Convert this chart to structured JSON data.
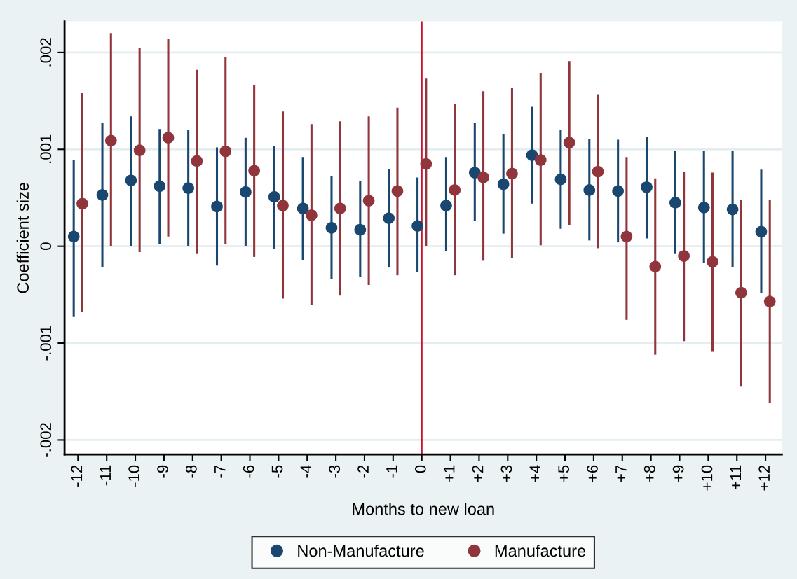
{
  "chart_data": {
    "type": "scatter",
    "xlabel": "Months to new loan",
    "ylabel": "Coefficient size",
    "xlim": [
      -12.47,
      12.57
    ],
    "xticks": [
      {
        "value": -12,
        "label": "-12"
      },
      {
        "value": -11,
        "label": "-11"
      },
      {
        "value": -10,
        "label": "-10"
      },
      {
        "value": -9,
        "label": "-9"
      },
      {
        "value": -8,
        "label": "-8"
      },
      {
        "value": -7,
        "label": "-7"
      },
      {
        "value": -6,
        "label": "-6"
      },
      {
        "value": -5,
        "label": "-5"
      },
      {
        "value": -4,
        "label": "-4"
      },
      {
        "value": -3,
        "label": "-3"
      },
      {
        "value": -2,
        "label": "-2"
      },
      {
        "value": -1,
        "label": "-1"
      },
      {
        "value": 0,
        "label": "0"
      },
      {
        "value": 1,
        "label": "+1"
      },
      {
        "value": 2,
        "label": "+2"
      },
      {
        "value": 3,
        "label": "+3"
      },
      {
        "value": 4,
        "label": "+4"
      },
      {
        "value": 5,
        "label": "+5"
      },
      {
        "value": 6,
        "label": "+6"
      },
      {
        "value": 7,
        "label": "+7"
      },
      {
        "value": 8,
        "label": "+8"
      },
      {
        "value": 9,
        "label": "+9"
      },
      {
        "value": 10,
        "label": "+10"
      },
      {
        "value": 11,
        "label": "+11"
      },
      {
        "value": 12,
        "label": "+12"
      }
    ],
    "ylim": [
      -0.00215,
      0.00232
    ],
    "yticks": [
      {
        "value": -0.002,
        "label": "-.002"
      },
      {
        "value": -0.001,
        "label": "-.001"
      },
      {
        "value": 0,
        "label": "0"
      },
      {
        "value": 0.001,
        "label": ".001"
      },
      {
        "value": 0.002,
        "label": ".002"
      }
    ],
    "grid": "y",
    "legend": "bottom",
    "marker": "circle",
    "ref_lines": [
      {
        "axis": "x",
        "value": 0,
        "color": "#d0102e",
        "line_style": "solid"
      }
    ],
    "series": [
      {
        "name": "Non-Manufacture",
        "color": "#1a476f",
        "x": [
          -12.15,
          -11.15,
          -10.15,
          -9.15,
          -8.15,
          -7.15,
          -6.15,
          -5.15,
          -4.15,
          -3.15,
          -2.15,
          -1.15,
          -0.15,
          0.85,
          1.85,
          2.85,
          3.85,
          4.85,
          5.85,
          6.85,
          7.85,
          8.85,
          9.85,
          10.85,
          11.85
        ],
        "values": [
          0.0001,
          0.00053,
          0.00068,
          0.00062,
          0.0006,
          0.00041,
          0.00056,
          0.00051,
          0.00039,
          0.00019,
          0.00017,
          0.00029,
          0.00021,
          0.00042,
          0.00076,
          0.00064,
          0.00094,
          0.00069,
          0.00058,
          0.00057,
          0.00061,
          0.00045,
          0.0004,
          0.00038,
          0.00015
        ],
        "errors": [
          [
            -0.00073,
            0.00089
          ],
          [
            -0.00022,
            0.00127
          ],
          [
            0.0,
            0.00134
          ],
          [
            2e-05,
            0.00121
          ],
          [
            0.0,
            0.0012
          ],
          [
            -0.0002,
            0.00102
          ],
          [
            0.0,
            0.00112
          ],
          [
            -3e-05,
            0.00103
          ],
          [
            -0.00014,
            0.00092
          ],
          [
            -0.00034,
            0.00072
          ],
          [
            -0.00032,
            0.00067
          ],
          [
            -0.00022,
            0.0008
          ],
          [
            -0.00027,
            0.00071
          ],
          [
            -5e-05,
            0.00092
          ],
          [
            0.00026,
            0.00127
          ],
          [
            0.00013,
            0.00116
          ],
          [
            0.00044,
            0.00144
          ],
          [
            0.00018,
            0.0012
          ],
          [
            6e-05,
            0.00111
          ],
          [
            4e-05,
            0.0011
          ],
          [
            8e-05,
            0.00113
          ],
          [
            -8e-05,
            0.00098
          ],
          [
            -0.00017,
            0.00098
          ],
          [
            -0.00022,
            0.00098
          ],
          [
            -0.00048,
            0.00079
          ]
        ]
      },
      {
        "name": "Manufacture",
        "color": "#90353b",
        "x": [
          -11.85,
          -10.85,
          -9.85,
          -8.85,
          -7.85,
          -6.85,
          -5.85,
          -4.85,
          -3.85,
          -2.85,
          -1.85,
          -0.85,
          0.15,
          1.15,
          2.15,
          3.15,
          4.15,
          5.15,
          6.15,
          7.15,
          8.15,
          9.15,
          10.15,
          11.15,
          12.15
        ],
        "values": [
          0.00044,
          0.00109,
          0.00099,
          0.00112,
          0.00088,
          0.00098,
          0.00078,
          0.00042,
          0.00032,
          0.00039,
          0.00047,
          0.00057,
          0.00085,
          0.00058,
          0.00071,
          0.00075,
          0.00089,
          0.00107,
          0.00077,
          0.0001,
          -0.00021,
          -0.0001,
          -0.00016,
          -0.00048,
          -0.00057
        ],
        "errors": [
          [
            -0.00068,
            0.00158
          ],
          [
            0.0,
            0.0022
          ],
          [
            -6e-05,
            0.00205
          ],
          [
            0.0001,
            0.00214
          ],
          [
            -8e-05,
            0.00182
          ],
          [
            2e-05,
            0.00195
          ],
          [
            -0.00011,
            0.00166
          ],
          [
            -0.00054,
            0.00139
          ],
          [
            -0.00061,
            0.00126
          ],
          [
            -0.00051,
            0.00129
          ],
          [
            -0.0004,
            0.00134
          ],
          [
            -0.0003,
            0.00143
          ],
          [
            0.0,
            0.00173
          ],
          [
            -0.0003,
            0.00147
          ],
          [
            -0.00015,
            0.0016
          ],
          [
            -0.00012,
            0.00163
          ],
          [
            1e-05,
            0.00179
          ],
          [
            0.00022,
            0.00191
          ],
          [
            -2e-05,
            0.00157
          ],
          [
            -0.00076,
            0.00092
          ],
          [
            -0.00112,
            0.0007
          ],
          [
            -0.00098,
            0.00077
          ],
          [
            -0.00109,
            0.00076
          ],
          [
            -0.00145,
            0.00048
          ],
          [
            -0.00162,
            0.00048
          ]
        ]
      }
    ]
  }
}
